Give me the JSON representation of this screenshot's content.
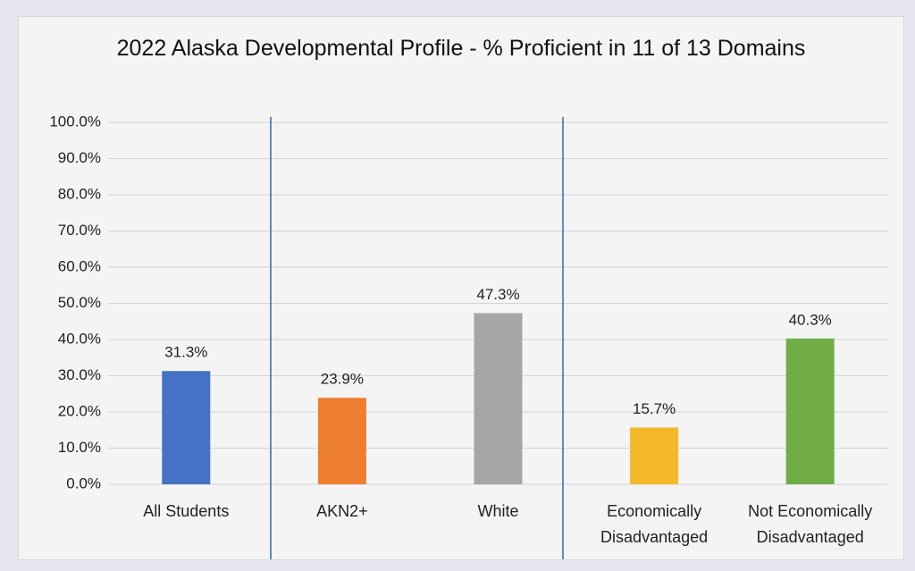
{
  "chart_data": {
    "type": "bar",
    "title": "2022 Alaska Developmental Profile - % Proficient in 11 of 13 Domains",
    "categories": [
      "All Students",
      "AKN2+",
      "White",
      "Economically Disadvantaged",
      "Not Economically Disadvantaged"
    ],
    "values": [
      31.3,
      23.9,
      47.3,
      15.7,
      40.3
    ],
    "value_labels": [
      "31.3%",
      "23.9%",
      "47.3%",
      "15.7%",
      "40.3%"
    ],
    "colors": [
      "#4472c4",
      "#ed7d31",
      "#a5a5a5",
      "#f4b92b",
      "#70ad47"
    ],
    "ylim": [
      0,
      100
    ],
    "yticks": [
      {
        "value": 0,
        "label": "0.0%"
      },
      {
        "value": 10,
        "label": "10.0%"
      },
      {
        "value": 20,
        "label": "20.0%"
      },
      {
        "value": 30,
        "label": "30.0%"
      },
      {
        "value": 40,
        "label": "40.0%"
      },
      {
        "value": 50,
        "label": "50.0%"
      },
      {
        "value": 60,
        "label": "60.0%"
      },
      {
        "value": 70,
        "label": "70.0%"
      },
      {
        "value": 80,
        "label": "80.0%"
      },
      {
        "value": 90,
        "label": "90.0%"
      },
      {
        "value": 100,
        "label": "100.0%"
      }
    ],
    "grid": true
  }
}
